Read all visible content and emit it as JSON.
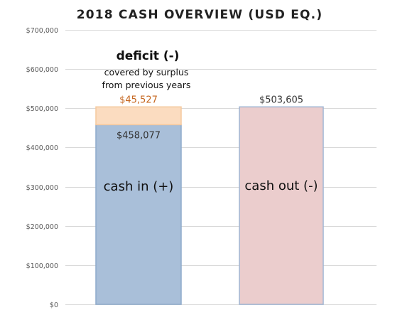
{
  "chart_data": {
    "type": "bar",
    "stacked": true,
    "title": "2018 CASH OVERVIEW (USD EQ.)",
    "xlabel": "",
    "ylabel": "",
    "ylim": [
      0,
      700000
    ],
    "yticks": [
      0,
      100000,
      200000,
      300000,
      400000,
      500000,
      600000,
      700000
    ],
    "ytick_labels": [
      "$0",
      "$100,000",
      "$200,000",
      "$300,000",
      "$400,000",
      "$500,000",
      "$600,000",
      "$700,000"
    ],
    "grid": true,
    "bars": [
      {
        "segments": [
          {
            "key": "cash_in",
            "value": 458077,
            "value_label": "$458,077",
            "segment_label": "cash in (+)",
            "color": "#a9bfd9",
            "border": "#8eaacb",
            "label_color": "#333333"
          },
          {
            "key": "deficit",
            "value": 45527,
            "value_label": "$45,527",
            "segment_label": "",
            "color": "#fbdcc0",
            "border": "#f5c99e",
            "label_color": "#c5651d"
          }
        ]
      },
      {
        "segments": [
          {
            "key": "cash_out",
            "value": 503605,
            "value_label": "$503,605",
            "segment_label": "cash out (-)",
            "color": "#ebcdcd",
            "border": "#9fb5d3",
            "label_color": "#333333"
          }
        ]
      }
    ],
    "annotation": {
      "heading": "deficit (-)",
      "lines": [
        "covered by surplus",
        "from previous years"
      ]
    }
  }
}
